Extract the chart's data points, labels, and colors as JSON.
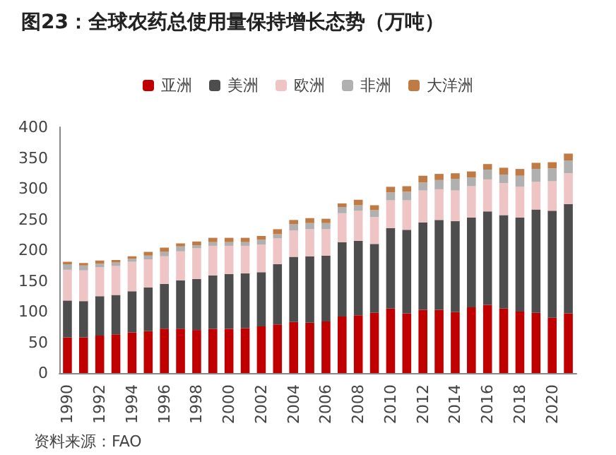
{
  "chart_data": {
    "type": "bar",
    "title": "图23：全球农药总使用量保持增长态势（万吨）",
    "categories": [
      "1990",
      null,
      "1992",
      null,
      "1994",
      null,
      "1996",
      null,
      "1998",
      null,
      "2000",
      null,
      "2002",
      null,
      "2004",
      null,
      "2006",
      null,
      "2008",
      null,
      "2010",
      null,
      "2012",
      null,
      "2014",
      null,
      "2016",
      null,
      "2018",
      null,
      "2020",
      null
    ],
    "stacked": true,
    "series": [
      {
        "name": "亚洲",
        "color": "#c00000",
        "values": [
          58,
          58,
          61,
          63,
          66,
          68,
          72,
          72,
          70,
          72,
          72,
          73,
          76,
          79,
          83,
          82,
          84,
          92,
          94,
          98,
          105,
          97,
          103,
          103,
          99,
          107,
          111,
          105,
          100,
          98,
          90,
          97
        ]
      },
      {
        "name": "美洲",
        "color": "#4d4d4d",
        "values": [
          60,
          59,
          64,
          64,
          67,
          71,
          73,
          79,
          83,
          87,
          89,
          89,
          88,
          98,
          106,
          108,
          107,
          121,
          121,
          112,
          131,
          136,
          142,
          146,
          148,
          146,
          152,
          152,
          153,
          168,
          174,
          178
        ]
      },
      {
        "name": "欧洲",
        "color": "#eec4c4",
        "values": [
          50,
          50,
          47,
          47,
          48,
          46,
          45,
          47,
          50,
          48,
          46,
          45,
          45,
          42,
          43,
          44,
          43,
          47,
          49,
          44,
          45,
          48,
          52,
          50,
          50,
          51,
          52,
          52,
          50,
          45,
          48,
          50
        ]
      },
      {
        "name": "非洲",
        "color": "#b0b0b0",
        "values": [
          9,
          8,
          6,
          6,
          5,
          6,
          7,
          8,
          5,
          6,
          6,
          6,
          8,
          7,
          10,
          10,
          10,
          10,
          9,
          11,
          13,
          14,
          13,
          15,
          19,
          14,
          16,
          14,
          18,
          21,
          21,
          21
        ]
      },
      {
        "name": "大洋洲",
        "color": "#c07a44",
        "values": [
          4,
          4,
          5,
          4,
          4,
          6,
          7,
          5,
          6,
          7,
          7,
          7,
          6,
          8,
          7,
          8,
          7,
          6,
          9,
          8,
          9,
          9,
          11,
          10,
          9,
          10,
          9,
          11,
          11,
          10,
          10,
          11
        ]
      }
    ],
    "ylim": [
      0,
      400
    ],
    "yticks": [
      0,
      50,
      100,
      150,
      200,
      250,
      300,
      350,
      400
    ],
    "grid": false,
    "legend": "top",
    "annotations": [
      "资料来源：FAO"
    ]
  }
}
